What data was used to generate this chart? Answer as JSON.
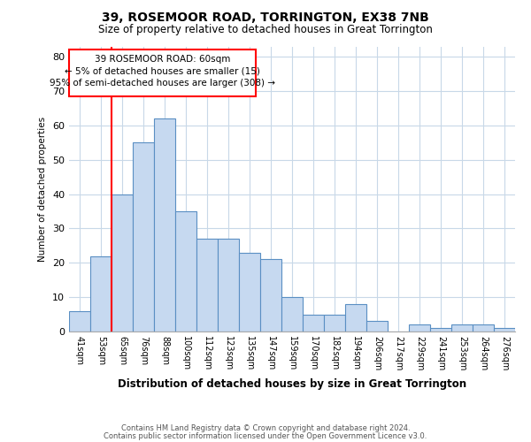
{
  "title": "39, ROSEMOOR ROAD, TORRINGTON, EX38 7NB",
  "subtitle": "Size of property relative to detached houses in Great Torrington",
  "xlabel": "Distribution of detached houses by size in Great Torrington",
  "ylabel": "Number of detached properties",
  "footnote1": "Contains HM Land Registry data © Crown copyright and database right 2024.",
  "footnote2": "Contains public sector information licensed under the Open Government Licence v3.0.",
  "bin_labels": [
    "41sqm",
    "53sqm",
    "65sqm",
    "76sqm",
    "88sqm",
    "100sqm",
    "112sqm",
    "123sqm",
    "135sqm",
    "147sqm",
    "159sqm",
    "170sqm",
    "182sqm",
    "194sqm",
    "206sqm",
    "217sqm",
    "229sqm",
    "241sqm",
    "253sqm",
    "264sqm",
    "276sqm"
  ],
  "bar_values": [
    6,
    22,
    40,
    55,
    62,
    35,
    27,
    27,
    23,
    21,
    10,
    5,
    5,
    8,
    3,
    0,
    2,
    1,
    2,
    2,
    1
  ],
  "bar_color": "#c6d9f0",
  "bar_edge_color": "#5a8fc3",
  "ylim": [
    0,
    83
  ],
  "yticks": [
    0,
    10,
    20,
    30,
    40,
    50,
    60,
    70,
    80
  ],
  "redline_bin_index": 2,
  "ann_line1": "39 ROSEMOOR ROAD: 60sqm",
  "ann_line2": "← 5% of detached houses are smaller (15)",
  "ann_line3": "95% of semi-detached houses are larger (308) →",
  "background_color": "#ffffff",
  "grid_color": "#c8d8e8"
}
